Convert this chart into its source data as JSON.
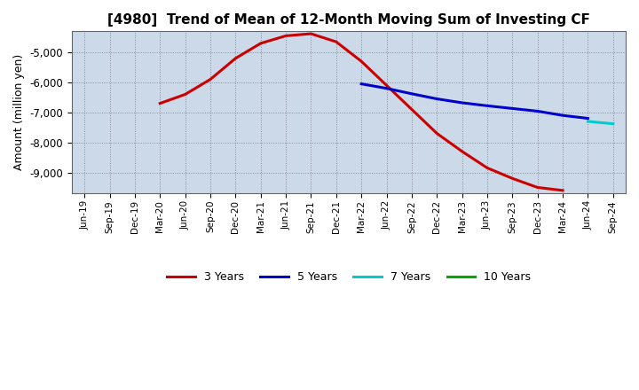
{
  "title": "[4980]  Trend of Mean of 12-Month Moving Sum of Investing CF",
  "ylabel": "Amount (million yen)",
  "ylim": [
    -9700,
    -4300
  ],
  "yticks": [
    -9000,
    -8000,
    -7000,
    -6000,
    -5000
  ],
  "background_color": "#ffffff",
  "plot_bg_color": "#ccd9e8",
  "grid_color": "#888899",
  "xtick_labels": [
    "Jun-19",
    "Sep-19",
    "Dec-19",
    "Mar-20",
    "Jun-20",
    "Sep-20",
    "Dec-20",
    "Mar-21",
    "Jun-21",
    "Sep-21",
    "Dec-21",
    "Mar-22",
    "Jun-22",
    "Sep-22",
    "Dec-22",
    "Mar-23",
    "Jun-23",
    "Sep-23",
    "Dec-23",
    "Mar-24",
    "Jun-24",
    "Sep-24"
  ],
  "series": {
    "3yr": {
      "color": "#cc0000",
      "label": "3 Years",
      "x": [
        3,
        4,
        5,
        6,
        7,
        8,
        9,
        10,
        11,
        12,
        13,
        14,
        15,
        16,
        17,
        18,
        19
      ],
      "y": [
        -6700,
        -6400,
        -5900,
        -5200,
        -4700,
        -4450,
        -4380,
        -4650,
        -5300,
        -6100,
        -6900,
        -7700,
        -8300,
        -8850,
        -9200,
        -9500,
        -9600
      ]
    },
    "5yr": {
      "color": "#0000cc",
      "label": "5 Years",
      "x": [
        11,
        12,
        13,
        14,
        15,
        16,
        17,
        18,
        19,
        20
      ],
      "y": [
        -6050,
        -6200,
        -6380,
        -6550,
        -6680,
        -6780,
        -6870,
        -6960,
        -7100,
        -7200
      ]
    },
    "7yr": {
      "color": "#00cccc",
      "label": "7 Years",
      "x": [
        20,
        21
      ],
      "y": [
        -7300,
        -7380
      ]
    },
    "10yr": {
      "color": "#00aa00",
      "label": "10 Years",
      "x": [],
      "y": []
    }
  }
}
